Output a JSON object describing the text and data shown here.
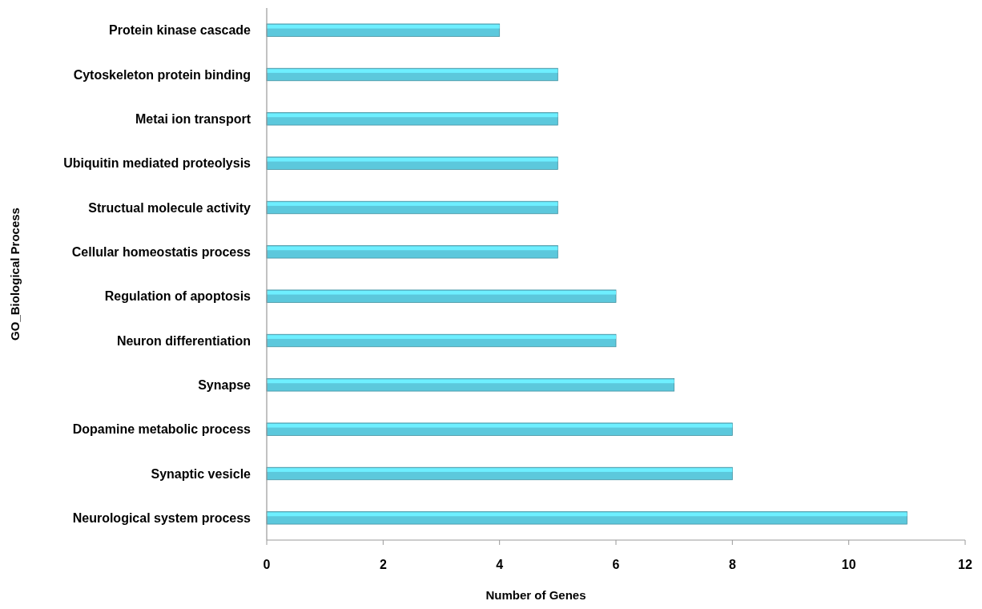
{
  "chart_data": {
    "type": "bar",
    "orientation": "horizontal",
    "xlabel": "Number of Genes",
    "ylabel": "GO_Biological Process",
    "categories": [
      "Protein kinase cascade",
      "Cytoskeleton protein binding",
      "Metai ion transport",
      "Ubiquitin mediated proteolysis",
      "Structual molecule activity",
      "Cellular homeostatis process",
      "Regulation of apoptosis",
      "Neuron differentiation",
      "Synapse",
      "Dopamine metabolic process",
      "Synaptic vesicle",
      "Neurological system process"
    ],
    "values": [
      4,
      5,
      5,
      5,
      5,
      5,
      6,
      6,
      7,
      8,
      8,
      11
    ],
    "color": "#5cc8dc",
    "xlim": [
      0,
      12
    ],
    "xticks": [
      0,
      2,
      4,
      6,
      8,
      10,
      12
    ]
  }
}
